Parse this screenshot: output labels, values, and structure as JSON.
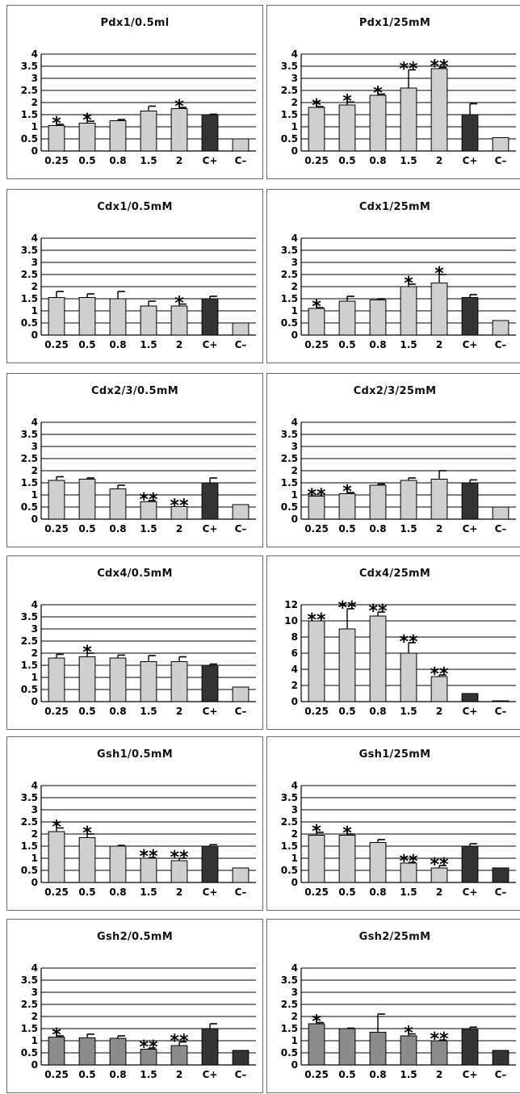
{
  "chart_data": [
    {
      "type": "bar",
      "title": "Pdx1/0.5ml",
      "categories": [
        "0.25",
        "0.5",
        "0.8",
        "1.5",
        "2",
        "C+",
        "C–"
      ],
      "ylim": [
        0,
        4
      ],
      "yticks": [
        "0",
        "0.5",
        "1",
        "1.5",
        "2",
        "2.5",
        "3",
        "3.5",
        "4"
      ],
      "values": [
        1.05,
        1.15,
        1.25,
        1.65,
        1.75,
        1.5,
        0.5
      ],
      "errors": [
        0.05,
        0.08,
        0.05,
        0.2,
        0.05,
        0.02,
        0
      ],
      "significance": [
        "*",
        "*",
        "",
        "",
        "*",
        "",
        ""
      ],
      "bar_colors": [
        "#cfcfcf",
        "#cfcfcf",
        "#cfcfcf",
        "#cfcfcf",
        "#cfcfcf",
        "#333333",
        "#cfcfcf"
      ]
    },
    {
      "type": "bar",
      "title": "Pdx1/25mM",
      "categories": [
        "0.25",
        "0.5",
        "0.8",
        "1.5",
        "2",
        "C+",
        "C–"
      ],
      "ylim": [
        0,
        4
      ],
      "yticks": [
        "0",
        "0.5",
        "1",
        "1.5",
        "2",
        "2.5",
        "3",
        "3.5",
        "4"
      ],
      "values": [
        1.8,
        1.9,
        2.3,
        2.6,
        3.4,
        1.5,
        0.55
      ],
      "errors": [
        0.03,
        0.12,
        0.05,
        0.75,
        0.05,
        0.45,
        0
      ],
      "significance": [
        "*",
        "*",
        "*",
        "**",
        "**",
        "",
        ""
      ],
      "bar_colors": [
        "#cfcfcf",
        "#cfcfcf",
        "#cfcfcf",
        "#cfcfcf",
        "#cfcfcf",
        "#333333",
        "#cfcfcf"
      ]
    },
    {
      "type": "bar",
      "title": "Cdx1/0.5mM",
      "categories": [
        "0.25",
        "0.5",
        "0.8",
        "1.5",
        "2",
        "C+",
        "C–"
      ],
      "ylim": [
        0,
        4
      ],
      "yticks": [
        "0",
        "0.5",
        "1",
        "1.5",
        "2",
        "2.5",
        "3",
        "3.5",
        "4"
      ],
      "values": [
        1.55,
        1.55,
        1.5,
        1.2,
        1.2,
        1.5,
        0.5
      ],
      "errors": [
        0.25,
        0.15,
        0.3,
        0.2,
        0.08,
        0.1,
        0
      ],
      "significance": [
        "",
        "",
        "",
        "",
        "*",
        "",
        ""
      ],
      "bar_colors": [
        "#cfcfcf",
        "#cfcfcf",
        "#cfcfcf",
        "#cfcfcf",
        "#cfcfcf",
        "#333333",
        "#cfcfcf"
      ]
    },
    {
      "type": "bar",
      "title": "Cdx1/25mM",
      "categories": [
        "0.25",
        "0.5",
        "0.8",
        "1.5",
        "2",
        "C+",
        "C–"
      ],
      "ylim": [
        0,
        4
      ],
      "yticks": [
        "0",
        "0.5",
        "1",
        "1.5",
        "2",
        "2.5",
        "3",
        "3.5",
        "4"
      ],
      "values": [
        1.1,
        1.4,
        1.45,
        2.0,
        2.15,
        1.55,
        0.6
      ],
      "errors": [
        0.03,
        0.2,
        0.05,
        0.1,
        0.35,
        0.12,
        0
      ],
      "significance": [
        "*",
        "",
        "",
        "*",
        "*",
        "",
        ""
      ],
      "bar_colors": [
        "#cfcfcf",
        "#cfcfcf",
        "#cfcfcf",
        "#cfcfcf",
        "#cfcfcf",
        "#333333",
        "#cfcfcf"
      ]
    },
    {
      "type": "bar",
      "title": "Cdx2/3/0.5mM",
      "categories": [
        "0.25",
        "0.5",
        "0.8",
        "1.5",
        "2",
        "C+",
        "C–"
      ],
      "ylim": [
        0,
        4
      ],
      "yticks": [
        "0",
        "0.5",
        "1",
        "1.5",
        "2",
        "2.5",
        "3",
        "3.5",
        "4"
      ],
      "values": [
        1.6,
        1.65,
        1.25,
        0.72,
        0.52,
        1.5,
        0.6
      ],
      "errors": [
        0.15,
        0.05,
        0.15,
        0.05,
        0,
        0.2,
        0
      ],
      "significance": [
        "",
        "",
        "",
        "**",
        "**",
        "",
        ""
      ],
      "bar_colors": [
        "#cfcfcf",
        "#cfcfcf",
        "#cfcfcf",
        "#cfcfcf",
        "#cfcfcf",
        "#333333",
        "#cfcfcf"
      ]
    },
    {
      "type": "bar",
      "title": "Cdx2/3/25mM",
      "categories": [
        "0.25",
        "0.5",
        "0.8",
        "1.5",
        "2",
        "C+",
        "C–"
      ],
      "ylim": [
        0,
        4
      ],
      "yticks": [
        "0",
        "0.5",
        "1",
        "1.5",
        "2",
        "2.5",
        "3",
        "3.5",
        "4"
      ],
      "values": [
        0.95,
        1.05,
        1.4,
        1.6,
        1.65,
        1.5,
        0.5
      ],
      "errors": [
        0,
        0.05,
        0.05,
        0.1,
        0.35,
        0.12,
        0
      ],
      "significance": [
        "**",
        "*",
        "",
        "",
        "",
        "",
        ""
      ],
      "bar_colors": [
        "#cfcfcf",
        "#cfcfcf",
        "#cfcfcf",
        "#cfcfcf",
        "#cfcfcf",
        "#333333",
        "#cfcfcf"
      ]
    },
    {
      "type": "bar",
      "title": "Cdx4/0.5mM",
      "categories": [
        "0.25",
        "0.5",
        "0.8",
        "1.5",
        "2",
        "C+",
        "C–"
      ],
      "ylim": [
        0,
        4
      ],
      "yticks": [
        "0",
        "0.5",
        "1",
        "1.5",
        "2",
        "2.5",
        "3",
        "3.5",
        "4"
      ],
      "values": [
        1.8,
        1.85,
        1.8,
        1.65,
        1.65,
        1.5,
        0.6
      ],
      "errors": [
        0.15,
        0.15,
        0.12,
        0.25,
        0.2,
        0.05,
        0
      ],
      "significance": [
        "",
        "*",
        "",
        "",
        "",
        "",
        ""
      ],
      "bar_colors": [
        "#cfcfcf",
        "#cfcfcf",
        "#cfcfcf",
        "#cfcfcf",
        "#cfcfcf",
        "#333333",
        "#cfcfcf"
      ]
    },
    {
      "type": "bar",
      "title": "Cdx4/25mM",
      "categories": [
        "0.25",
        "0.5",
        "0.8",
        "1.5",
        "2",
        "C+",
        "C–"
      ],
      "ylim": [
        0,
        12
      ],
      "yticks": [
        "0",
        "2",
        "4",
        "6",
        "8",
        "10",
        "12"
      ],
      "values": [
        10,
        9,
        10.6,
        6,
        3.1,
        1,
        0.1
      ],
      "errors": [
        0,
        2.5,
        0.5,
        1.3,
        0.2,
        0,
        0
      ],
      "significance": [
        "**",
        "**",
        "**",
        "**",
        "**",
        "",
        ""
      ],
      "bar_colors": [
        "#cfcfcf",
        "#cfcfcf",
        "#cfcfcf",
        "#cfcfcf",
        "#cfcfcf",
        "#333333",
        "#cfcfcf"
      ]
    },
    {
      "type": "bar",
      "title": "Gsh1/0.5mM",
      "categories": [
        "0.25",
        "0.5",
        "0.8",
        "1.5",
        "2",
        "C+",
        "C–"
      ],
      "ylim": [
        0,
        4
      ],
      "yticks": [
        "0",
        "0.5",
        "1",
        "1.5",
        "2",
        "2.5",
        "3",
        "3.5",
        "4"
      ],
      "values": [
        2.1,
        1.85,
        1.5,
        1.0,
        0.9,
        1.5,
        0.6
      ],
      "errors": [
        0.15,
        0.15,
        0.03,
        0.03,
        0.1,
        0.06,
        0
      ],
      "significance": [
        "*",
        "*",
        "",
        "**",
        "**",
        "",
        ""
      ],
      "bar_colors": [
        "#cfcfcf",
        "#cfcfcf",
        "#cfcfcf",
        "#cfcfcf",
        "#cfcfcf",
        "#333333",
        "#cfcfcf"
      ]
    },
    {
      "type": "bar",
      "title": "Gsh1/25mM",
      "categories": [
        "0.25",
        "0.5",
        "0.8",
        "1.5",
        "2",
        "C+",
        "C–"
      ],
      "ylim": [
        0,
        4
      ],
      "yticks": [
        "0",
        "0.5",
        "1",
        "1.5",
        "2",
        "2.5",
        "3",
        "3.5",
        "4"
      ],
      "values": [
        1.95,
        1.95,
        1.65,
        0.8,
        0.6,
        1.5,
        0.6
      ],
      "errors": [
        0.12,
        0.05,
        0.12,
        0.03,
        0.1,
        0.1,
        0
      ],
      "significance": [
        "*",
        "*",
        "",
        "**",
        "**",
        "",
        ""
      ],
      "bar_colors": [
        "#cfcfcf",
        "#cfcfcf",
        "#cfcfcf",
        "#cfcfcf",
        "#cfcfcf",
        "#333333",
        "#333333"
      ]
    },
    {
      "type": "bar",
      "title": "Gsh2/0.5mM",
      "categories": [
        "0.25",
        "0.5",
        "0.8",
        "1.5",
        "2",
        "C+",
        "C–"
      ],
      "ylim": [
        0,
        4
      ],
      "yticks": [
        "0",
        "0.5",
        "1",
        "1.5",
        "2",
        "2.5",
        "3",
        "3.5",
        "4"
      ],
      "values": [
        1.15,
        1.12,
        1.1,
        0.65,
        0.8,
        1.5,
        0.6
      ],
      "errors": [
        0.05,
        0.15,
        0.1,
        0.05,
        0.15,
        0.2,
        0
      ],
      "significance": [
        "*",
        "",
        "",
        "**",
        "**",
        "",
        ""
      ],
      "bar_colors": [
        "#8c8c8c",
        "#8c8c8c",
        "#8c8c8c",
        "#8c8c8c",
        "#8c8c8c",
        "#333333",
        "#333333"
      ]
    },
    {
      "type": "bar",
      "title": "Gsh2/25mM",
      "categories": [
        "0.25",
        "0.5",
        "0.8",
        "1.5",
        "2",
        "C+",
        "C–"
      ],
      "ylim": [
        0,
        4
      ],
      "yticks": [
        "0",
        "0.5",
        "1",
        "1.5",
        "2",
        "2.5",
        "3",
        "3.5",
        "4"
      ],
      "values": [
        1.7,
        1.5,
        1.35,
        1.2,
        1.0,
        1.5,
        0.6
      ],
      "errors": [
        0.05,
        0.02,
        0.75,
        0.08,
        0.03,
        0.06,
        0
      ],
      "significance": [
        "*",
        "",
        "",
        "*",
        "**",
        "",
        ""
      ],
      "bar_colors": [
        "#8c8c8c",
        "#8c8c8c",
        "#8c8c8c",
        "#8c8c8c",
        "#8c8c8c",
        "#333333",
        "#333333"
      ]
    }
  ]
}
